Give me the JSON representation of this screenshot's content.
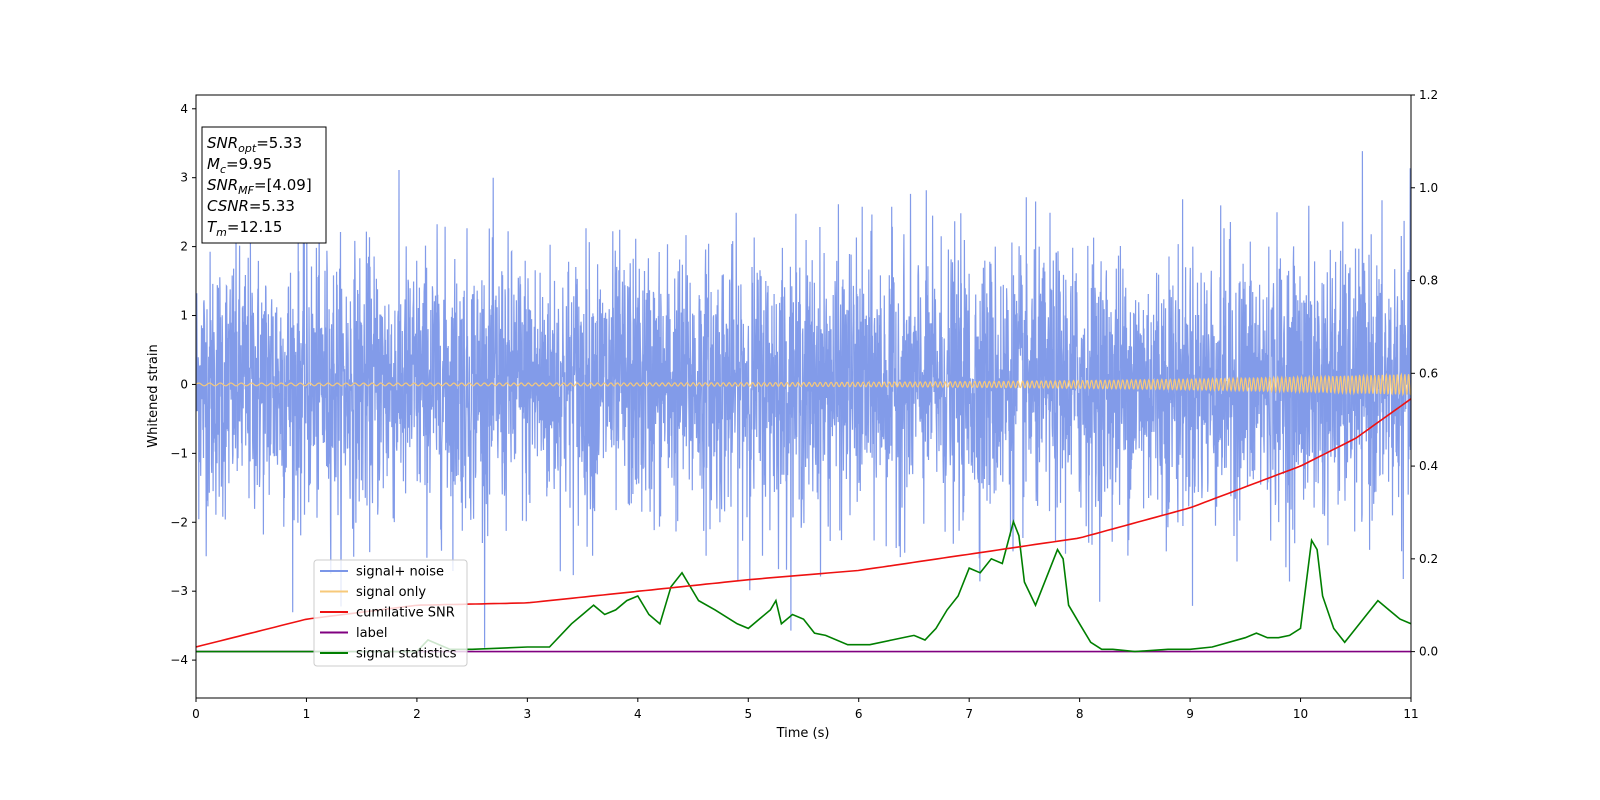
{
  "chart_data": {
    "type": "line",
    "xlabel": "Time (s)",
    "ylabel": "Whitened strain",
    "xlim": [
      0,
      11
    ],
    "ylim": [
      -4.55,
      4.2
    ],
    "y2lim": [
      -0.1,
      1.2
    ],
    "xticks": [
      0,
      1,
      2,
      3,
      4,
      5,
      6,
      7,
      8,
      9,
      10,
      11
    ],
    "yticks": [
      -4,
      -3,
      -2,
      -1,
      0,
      1,
      2,
      3,
      4
    ],
    "y2ticks": [
      0.0,
      0.2,
      0.4,
      0.6,
      0.8,
      1.0,
      1.2
    ],
    "y2ticklabels": [
      "0.0",
      "0.2",
      "0.4",
      "0.6",
      "0.8",
      "1.0",
      "1.2"
    ],
    "grid": false,
    "legend_position": "lower-left",
    "annotation": {
      "lines": [
        {
          "sym": "SNR",
          "sub": "opt",
          "value": "=5.33"
        },
        {
          "sym": "M",
          "sub": "c",
          "value": "=9.95"
        },
        {
          "sym": "SNR",
          "sub": "MF",
          "value": "=[4.09]"
        },
        {
          "sym": "CSNR",
          "sub": "",
          "value": "=5.33"
        },
        {
          "sym": "T",
          "sub": "m",
          "value": "=12.15"
        }
      ]
    },
    "series": [
      {
        "name": "signal+ noise",
        "color": "#7b96e8",
        "axis": "left",
        "description": "whitened noise, values roughly between -4.1 and 3.8"
      },
      {
        "name": "signal only",
        "color": "#f7c97a",
        "axis": "left",
        "description": "chirp oscillation around 0, amplitude growing from ~0.02 to ~0.15"
      },
      {
        "name": "cumilative SNR",
        "color": "#ee1111",
        "axis": "right",
        "x": [
          0,
          1,
          2,
          3,
          4,
          5,
          6,
          7,
          8,
          9,
          10,
          10.5,
          11
        ],
        "values": [
          0.01,
          0.07,
          0.1,
          0.105,
          0.13,
          0.155,
          0.175,
          0.21,
          0.245,
          0.31,
          0.4,
          0.46,
          0.545
        ]
      },
      {
        "name": "label",
        "color": "#800080",
        "axis": "right",
        "x": [
          0,
          11
        ],
        "values": [
          0.0,
          0.0
        ]
      },
      {
        "name": "signal statistics",
        "color": "#007f00",
        "axis": "right",
        "x": [
          0,
          1,
          2,
          2.1,
          2.3,
          2.5,
          3,
          3.2,
          3.4,
          3.5,
          3.6,
          3.7,
          3.8,
          3.9,
          4.0,
          4.1,
          4.2,
          4.3,
          4.4,
          4.45,
          4.55,
          4.7,
          4.9,
          5.0,
          5.1,
          5.2,
          5.25,
          5.3,
          5.4,
          5.5,
          5.6,
          5.7,
          5.9,
          6.1,
          6.3,
          6.5,
          6.6,
          6.7,
          6.8,
          6.9,
          7.0,
          7.1,
          7.2,
          7.3,
          7.4,
          7.45,
          7.5,
          7.6,
          7.7,
          7.8,
          7.85,
          7.9,
          8.0,
          8.1,
          8.2,
          8.3,
          8.5,
          8.8,
          9.0,
          9.2,
          9.5,
          9.6,
          9.7,
          9.8,
          9.9,
          10.0,
          10.1,
          10.15,
          10.2,
          10.3,
          10.4,
          10.5,
          10.6,
          10.7,
          10.8,
          10.9,
          11.0
        ],
        "values": [
          0.0,
          0.0,
          0.0,
          0.025,
          0.005,
          0.005,
          0.01,
          0.01,
          0.06,
          0.08,
          0.1,
          0.08,
          0.09,
          0.11,
          0.12,
          0.08,
          0.06,
          0.14,
          0.17,
          0.15,
          0.11,
          0.09,
          0.06,
          0.05,
          0.07,
          0.09,
          0.11,
          0.06,
          0.08,
          0.07,
          0.04,
          0.035,
          0.015,
          0.015,
          0.025,
          0.035,
          0.025,
          0.05,
          0.09,
          0.12,
          0.18,
          0.17,
          0.2,
          0.19,
          0.28,
          0.25,
          0.15,
          0.1,
          0.16,
          0.22,
          0.2,
          0.1,
          0.06,
          0.02,
          0.005,
          0.005,
          0.0,
          0.005,
          0.005,
          0.01,
          0.03,
          0.04,
          0.03,
          0.03,
          0.035,
          0.05,
          0.24,
          0.22,
          0.12,
          0.05,
          0.02,
          0.05,
          0.08,
          0.11,
          0.09,
          0.07,
          0.06
        ]
      }
    ]
  }
}
